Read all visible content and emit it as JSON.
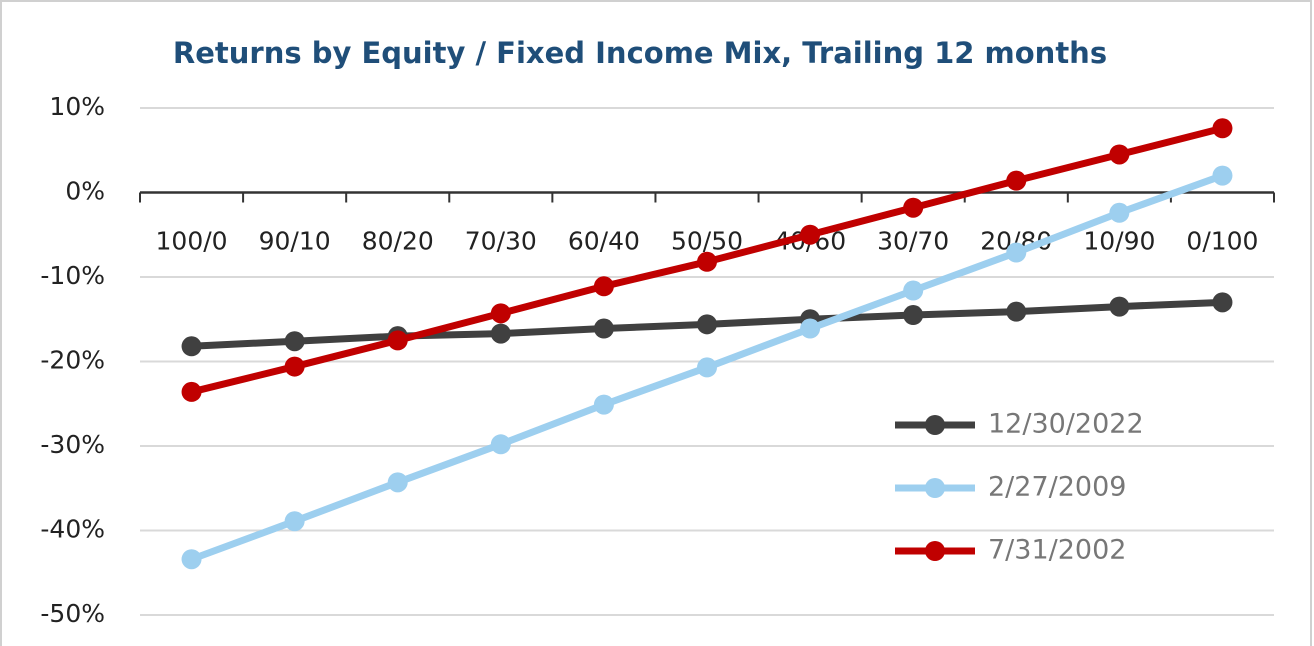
{
  "chart_data": {
    "type": "line",
    "title": "Returns by Equity / Fixed Income Mix, Trailing  12 months",
    "categories": [
      "100/0",
      "90/10",
      "80/20",
      "70/30",
      "60/40",
      "50/50",
      "40/60",
      "30/70",
      "20/80",
      "10/90",
      "0/100"
    ],
    "series": [
      {
        "name": "12/30/2022",
        "color": "#404040",
        "values": [
          -18.2,
          -17.6,
          -17.0,
          -16.7,
          -16.1,
          -15.6,
          -15.0,
          -14.5,
          -14.1,
          -13.5,
          -13.0
        ]
      },
      {
        "name": "2/27/2009",
        "color": "#9dcfef",
        "values": [
          -43.4,
          -38.9,
          -34.3,
          -29.8,
          -25.1,
          -20.7,
          -16.1,
          -11.6,
          -7.1,
          -2.4,
          2.0
        ]
      },
      {
        "name": "7/31/2002",
        "color": "#c00000",
        "values": [
          -23.6,
          -20.6,
          -17.5,
          -14.3,
          -11.1,
          -8.2,
          -5.0,
          -1.8,
          1.4,
          4.5,
          7.6
        ]
      }
    ],
    "ylim": [
      -50,
      10
    ],
    "yticks": [
      {
        "value": 10,
        "label": "10%"
      },
      {
        "value": 0,
        "label": "0%"
      },
      {
        "value": -10,
        "label": "-10%"
      },
      {
        "value": -20,
        "label": "-20%"
      },
      {
        "value": -30,
        "label": "-30%"
      },
      {
        "value": -40,
        "label": "-40%"
      },
      {
        "value": -50,
        "label": "-50%"
      }
    ],
    "grid": true,
    "legend": "lower right"
  }
}
